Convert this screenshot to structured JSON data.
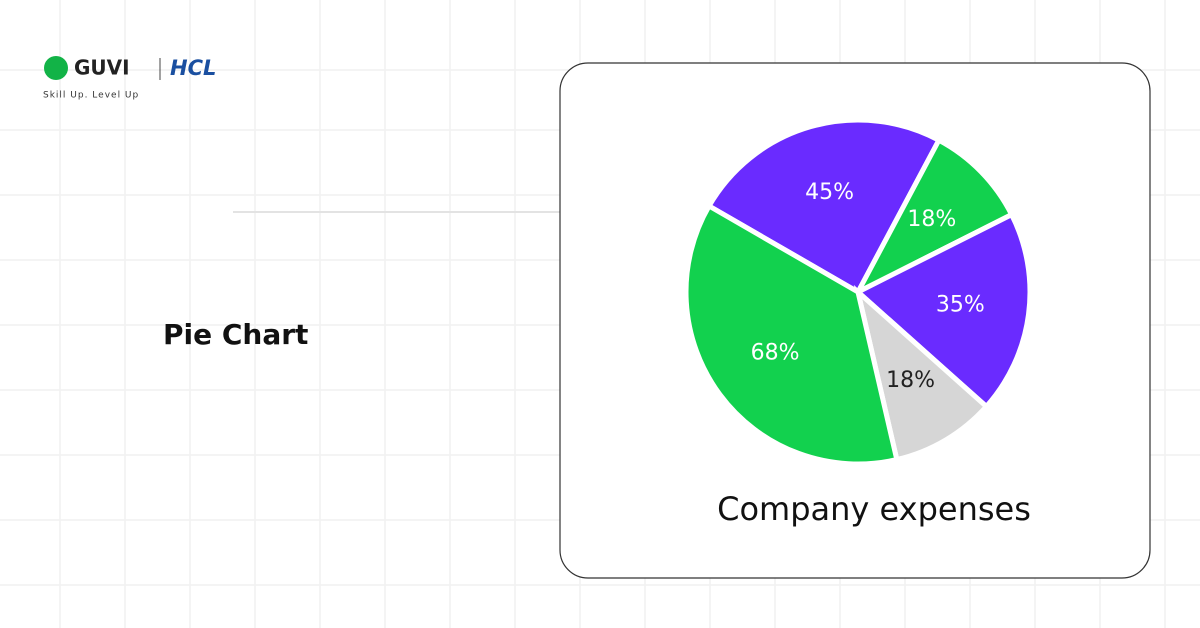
{
  "brand": {
    "name": "GUVI",
    "partner": "HCL",
    "tagline": "Skill Up. Level Up"
  },
  "heading": "Pie Chart",
  "chart_data": {
    "type": "pie",
    "title": "Company expenses",
    "values": [
      45,
      18,
      35,
      18,
      68
    ],
    "value_labels": [
      "45%",
      "18%",
      "35%",
      "18%",
      "68%"
    ],
    "colors": [
      "#6a2bff",
      "#12d14e",
      "#6a2bff",
      "#d6d6d6",
      "#12d14e"
    ]
  }
}
